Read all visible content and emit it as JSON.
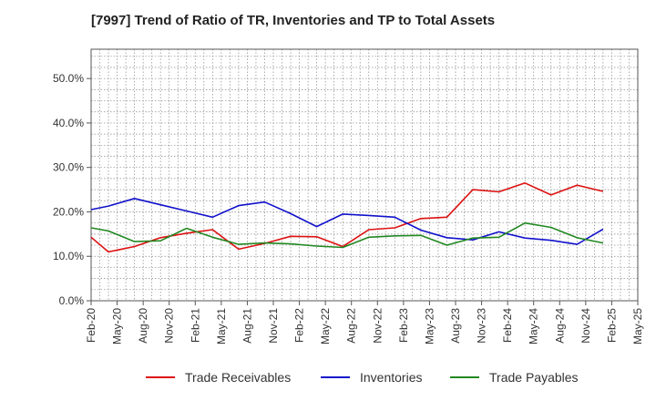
{
  "chart_data": {
    "type": "line",
    "title": "[7997]  Trend of Ratio of TR, Inventories and TP to Total Assets",
    "xlabel": "",
    "ylabel": "",
    "ylim": [
      0,
      0.566
    ],
    "y_ticks": [
      0,
      0.1,
      0.2,
      0.3,
      0.4,
      0.5
    ],
    "y_tick_labels": [
      "0.0%",
      "10.0%",
      "20.0%",
      "30.0%",
      "40.0%",
      "50.0%"
    ],
    "x_tick_labels": [
      "Feb-20",
      "May-20",
      "Aug-20",
      "Nov-20",
      "Feb-21",
      "May-21",
      "Aug-21",
      "Nov-21",
      "Feb-22",
      "May-22",
      "Aug-22",
      "Nov-22",
      "Feb-23",
      "May-23",
      "Aug-23",
      "Nov-23",
      "Feb-24",
      "May-24",
      "Aug-24",
      "Nov-24",
      "Feb-25",
      "May-25"
    ],
    "grid": true,
    "legend_position": "bottom",
    "x": [
      "Feb-20",
      "Apr-20",
      "Jul-20",
      "Oct-20",
      "Jan-21",
      "Apr-21",
      "Jul-21",
      "Oct-21",
      "Jan-22",
      "Apr-22",
      "Jul-22",
      "Oct-22",
      "Jan-23",
      "Apr-23",
      "Jul-23",
      "Oct-23",
      "Jan-24",
      "Apr-24",
      "Jul-24",
      "Oct-24",
      "Jan-25"
    ],
    "series": [
      {
        "name": "Trade Receivables",
        "color": "#dd1111",
        "values": [
          0.143,
          0.11,
          0.122,
          0.142,
          0.152,
          0.16,
          0.116,
          0.129,
          0.145,
          0.144,
          0.122,
          0.16,
          0.164,
          0.185,
          0.188,
          0.25,
          0.245,
          0.265,
          0.238,
          0.26,
          0.246
        ]
      },
      {
        "name": "Inventories",
        "color": "#1111cc",
        "values": [
          0.205,
          0.213,
          0.23,
          0.216,
          0.202,
          0.188,
          0.214,
          0.222,
          0.196,
          0.167,
          0.195,
          0.192,
          0.188,
          0.159,
          0.142,
          0.137,
          0.155,
          0.141,
          0.136,
          0.127,
          0.161
        ]
      },
      {
        "name": "Trade Payables",
        "color": "#228822",
        "values": [
          0.164,
          0.157,
          0.133,
          0.135,
          0.163,
          0.143,
          0.127,
          0.13,
          0.128,
          0.123,
          0.12,
          0.143,
          0.146,
          0.147,
          0.125,
          0.141,
          0.143,
          0.175,
          0.165,
          0.142,
          0.13
        ]
      }
    ]
  }
}
